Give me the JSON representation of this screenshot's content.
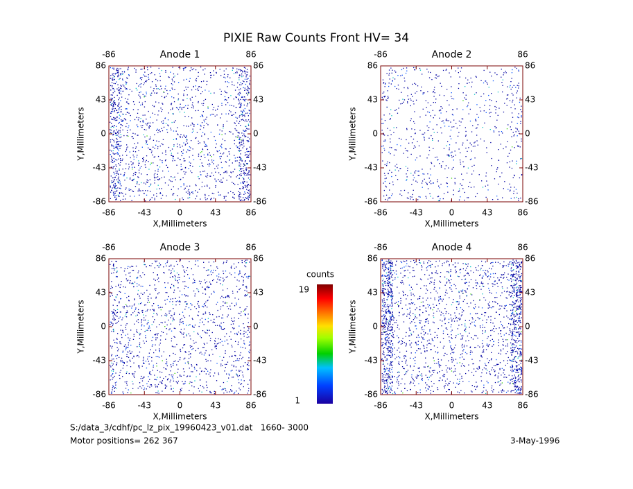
{
  "title": "PIXIE Raw Counts Front HV= 34",
  "chart_data": [
    {
      "type": "heatmap",
      "title": "Anode 1",
      "xlabel": "X,Millimeters",
      "ylabel": "Y,Millimeters",
      "xlim": [
        -86,
        86
      ],
      "ylim": [
        -86,
        86
      ],
      "xticks": [
        -86,
        -43,
        0,
        43,
        86
      ],
      "yticks": [
        -86,
        -43,
        0,
        43,
        86
      ]
    },
    {
      "type": "heatmap",
      "title": "Anode 2",
      "xlabel": "X,Millimeters",
      "ylabel": "Y,Millimeters",
      "xlim": [
        -86,
        86
      ],
      "ylim": [
        -86,
        86
      ],
      "xticks": [
        -86,
        -43,
        0,
        43,
        86
      ],
      "yticks": [
        -86,
        -43,
        0,
        43,
        86
      ]
    },
    {
      "type": "heatmap",
      "title": "Anode 3",
      "xlabel": "X,Millimeters",
      "ylabel": "Y,Millimeters",
      "xlim": [
        -86,
        86
      ],
      "ylim": [
        -86,
        86
      ],
      "xticks": [
        -86,
        -43,
        0,
        43,
        86
      ],
      "yticks": [
        -86,
        -43,
        0,
        43,
        86
      ]
    },
    {
      "type": "heatmap",
      "title": "Anode 4",
      "xlabel": "X,Millimeters",
      "ylabel": "Y,Millimeters",
      "xlim": [
        -86,
        86
      ],
      "ylim": [
        -86,
        86
      ],
      "xticks": [
        -86,
        -43,
        0,
        43,
        86
      ],
      "yticks": [
        -86,
        -43,
        0,
        43,
        86
      ]
    }
  ],
  "colorbar": {
    "label": "counts",
    "lim": [
      1,
      19
    ]
  },
  "footer": {
    "file": "S:/data_3/cdhf/pc_lz_pix_19960423_v01.dat   1660- 3000",
    "motor": "Motor positions= 262 367",
    "date": "3-May-1996"
  }
}
